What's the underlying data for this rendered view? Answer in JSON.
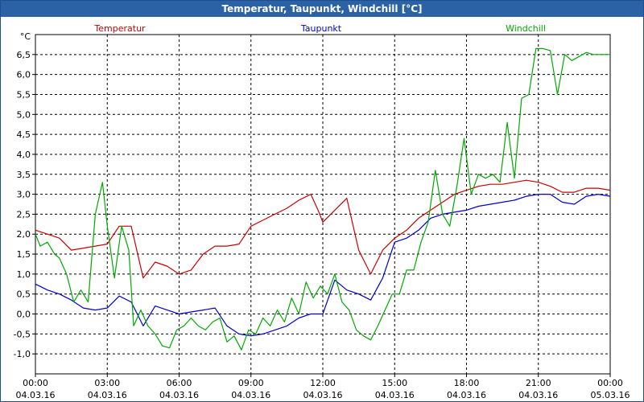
{
  "window": {
    "title": "Temperatur, Taupunkt, Windchill [°C]"
  },
  "colors": {
    "plot_border": "#000000",
    "grid": "#000000",
    "title_bar": "#2b62a6"
  },
  "chart_data": {
    "type": "line",
    "title": "Temperatur, Taupunkt, Windchill [°C]",
    "ylabel": "°C",
    "ylim": [
      -1.5,
      7.0
    ],
    "yticks": [
      -1.0,
      -0.5,
      0.0,
      0.5,
      1.0,
      1.5,
      2.0,
      2.5,
      3.0,
      3.5,
      4.0,
      4.5,
      5.0,
      5.5,
      6.0,
      6.5
    ],
    "ytick_labels": [
      "-1,0",
      "-0,5",
      "0,0",
      "0,5",
      "1,0",
      "1,5",
      "2,0",
      "2,5",
      "3,0",
      "3,5",
      "4,0",
      "4,5",
      "5,0",
      "5,5",
      "6,0",
      "6,5"
    ],
    "xlim": [
      0,
      24
    ],
    "xticks": [
      0,
      3,
      6,
      9,
      12,
      15,
      18,
      21,
      24
    ],
    "xtick_labels": [
      [
        "00:00",
        "04.03.16"
      ],
      [
        "03:00",
        "04.03.16"
      ],
      [
        "06:00",
        "04.03.16"
      ],
      [
        "09:00",
        "04.03.16"
      ],
      [
        "12:00",
        "04.03.16"
      ],
      [
        "15:00",
        "04.03.16"
      ],
      [
        "18:00",
        "04.03.16"
      ],
      [
        "21:00",
        "04.03.16"
      ],
      [
        "00:00",
        "05.03.16"
      ]
    ],
    "grid": true,
    "legend_position": "top",
    "series": [
      {
        "name": "Temperatur",
        "color": "#cc0000",
        "x": [
          0,
          0.5,
          1.0,
          1.5,
          2.0,
          2.5,
          3.0,
          3.5,
          4.0,
          4.5,
          5.0,
          5.5,
          6.0,
          6.5,
          7.0,
          7.5,
          8.0,
          8.5,
          9.0,
          9.5,
          10.0,
          10.5,
          11.0,
          11.5,
          11.8,
          12.0,
          12.5,
          13.0,
          13.5,
          14.0,
          14.5,
          15.0,
          15.5,
          16.0,
          16.5,
          17.0,
          17.5,
          18.0,
          18.5,
          19.0,
          19.5,
          20.0,
          20.5,
          21.0,
          21.5,
          22.0,
          22.5,
          23.0,
          23.5,
          24.0
        ],
        "y": [
          2.1,
          2.0,
          1.9,
          1.6,
          1.65,
          1.7,
          1.75,
          2.2,
          2.2,
          0.9,
          1.3,
          1.2,
          1.0,
          1.1,
          1.5,
          1.7,
          1.7,
          1.75,
          2.2,
          2.35,
          2.5,
          2.65,
          2.85,
          3.0,
          2.6,
          2.3,
          2.6,
          2.9,
          1.6,
          1.0,
          1.6,
          1.9,
          2.1,
          2.4,
          2.6,
          2.8,
          3.0,
          3.1,
          3.2,
          3.25,
          3.25,
          3.3,
          3.35,
          3.3,
          3.2,
          3.05,
          3.05,
          3.15,
          3.15,
          3.1
        ]
      },
      {
        "name": "Taupunkt",
        "color": "#0000cc",
        "x": [
          0,
          0.5,
          1.0,
          1.5,
          2.0,
          2.5,
          3.0,
          3.5,
          4.0,
          4.5,
          5.0,
          5.5,
          6.0,
          6.5,
          7.0,
          7.5,
          8.0,
          8.5,
          9.0,
          9.5,
          10.0,
          10.5,
          11.0,
          11.5,
          12.0,
          12.5,
          13.0,
          13.5,
          14.0,
          14.5,
          15.0,
          15.5,
          16.0,
          16.5,
          17.0,
          17.5,
          18.0,
          18.5,
          19.0,
          19.5,
          20.0,
          20.5,
          21.0,
          21.5,
          22.0,
          22.5,
          23.0,
          23.5,
          24.0
        ],
        "y": [
          0.75,
          0.6,
          0.5,
          0.35,
          0.15,
          0.1,
          0.15,
          0.45,
          0.3,
          -0.3,
          0.2,
          0.1,
          0.0,
          0.05,
          0.1,
          0.15,
          -0.3,
          -0.5,
          -0.55,
          -0.5,
          -0.4,
          -0.3,
          -0.1,
          0.0,
          0.0,
          0.85,
          0.6,
          0.5,
          0.35,
          0.9,
          1.8,
          1.9,
          2.1,
          2.4,
          2.5,
          2.55,
          2.6,
          2.7,
          2.75,
          2.8,
          2.85,
          2.95,
          3.0,
          3.0,
          2.8,
          2.75,
          2.95,
          3.0,
          2.95
        ]
      },
      {
        "name": "Windchill",
        "color": "#00aa00",
        "x": [
          0,
          0.2,
          0.5,
          0.8,
          1.0,
          1.3,
          1.6,
          1.9,
          2.2,
          2.5,
          2.8,
          3.0,
          3.3,
          3.6,
          3.9,
          4.1,
          4.4,
          4.7,
          5.0,
          5.3,
          5.6,
          5.9,
          6.2,
          6.5,
          6.8,
          7.1,
          7.4,
          7.7,
          8.0,
          8.3,
          8.6,
          8.9,
          9.2,
          9.5,
          9.8,
          10.1,
          10.4,
          10.7,
          11.0,
          11.3,
          11.6,
          11.9,
          12.2,
          12.5,
          12.8,
          13.1,
          13.4,
          13.7,
          14.0,
          14.3,
          14.6,
          14.9,
          15.2,
          15.5,
          15.8,
          16.1,
          16.4,
          16.7,
          17.0,
          17.3,
          17.6,
          17.9,
          18.2,
          18.5,
          18.8,
          19.1,
          19.4,
          19.7,
          20.0,
          20.3,
          20.6,
          20.9,
          21.2,
          21.5,
          21.8,
          22.1,
          22.4,
          22.7,
          23.0,
          23.3,
          23.6,
          24.0
        ],
        "y": [
          2.0,
          1.7,
          1.8,
          1.5,
          1.4,
          1.0,
          0.3,
          0.6,
          0.3,
          2.5,
          3.3,
          2.2,
          0.9,
          2.2,
          1.6,
          -0.3,
          0.1,
          -0.3,
          -0.5,
          -0.8,
          -0.85,
          -0.4,
          -0.3,
          -0.1,
          -0.3,
          -0.4,
          -0.2,
          -0.1,
          -0.7,
          -0.55,
          -0.9,
          -0.4,
          -0.5,
          -0.1,
          -0.3,
          0.1,
          -0.2,
          0.4,
          0.0,
          0.8,
          0.4,
          0.7,
          0.5,
          1.0,
          0.3,
          0.1,
          -0.4,
          -0.55,
          -0.65,
          -0.3,
          0.1,
          0.5,
          0.5,
          1.1,
          1.1,
          1.8,
          2.3,
          3.6,
          2.5,
          2.2,
          3.2,
          4.4,
          3.0,
          3.5,
          3.4,
          3.5,
          3.3,
          4.8,
          3.4,
          5.4,
          5.5,
          6.65,
          6.65,
          6.6,
          5.5,
          6.5,
          6.35,
          6.45,
          6.55,
          6.5,
          6.5,
          6.5
        ]
      }
    ]
  }
}
